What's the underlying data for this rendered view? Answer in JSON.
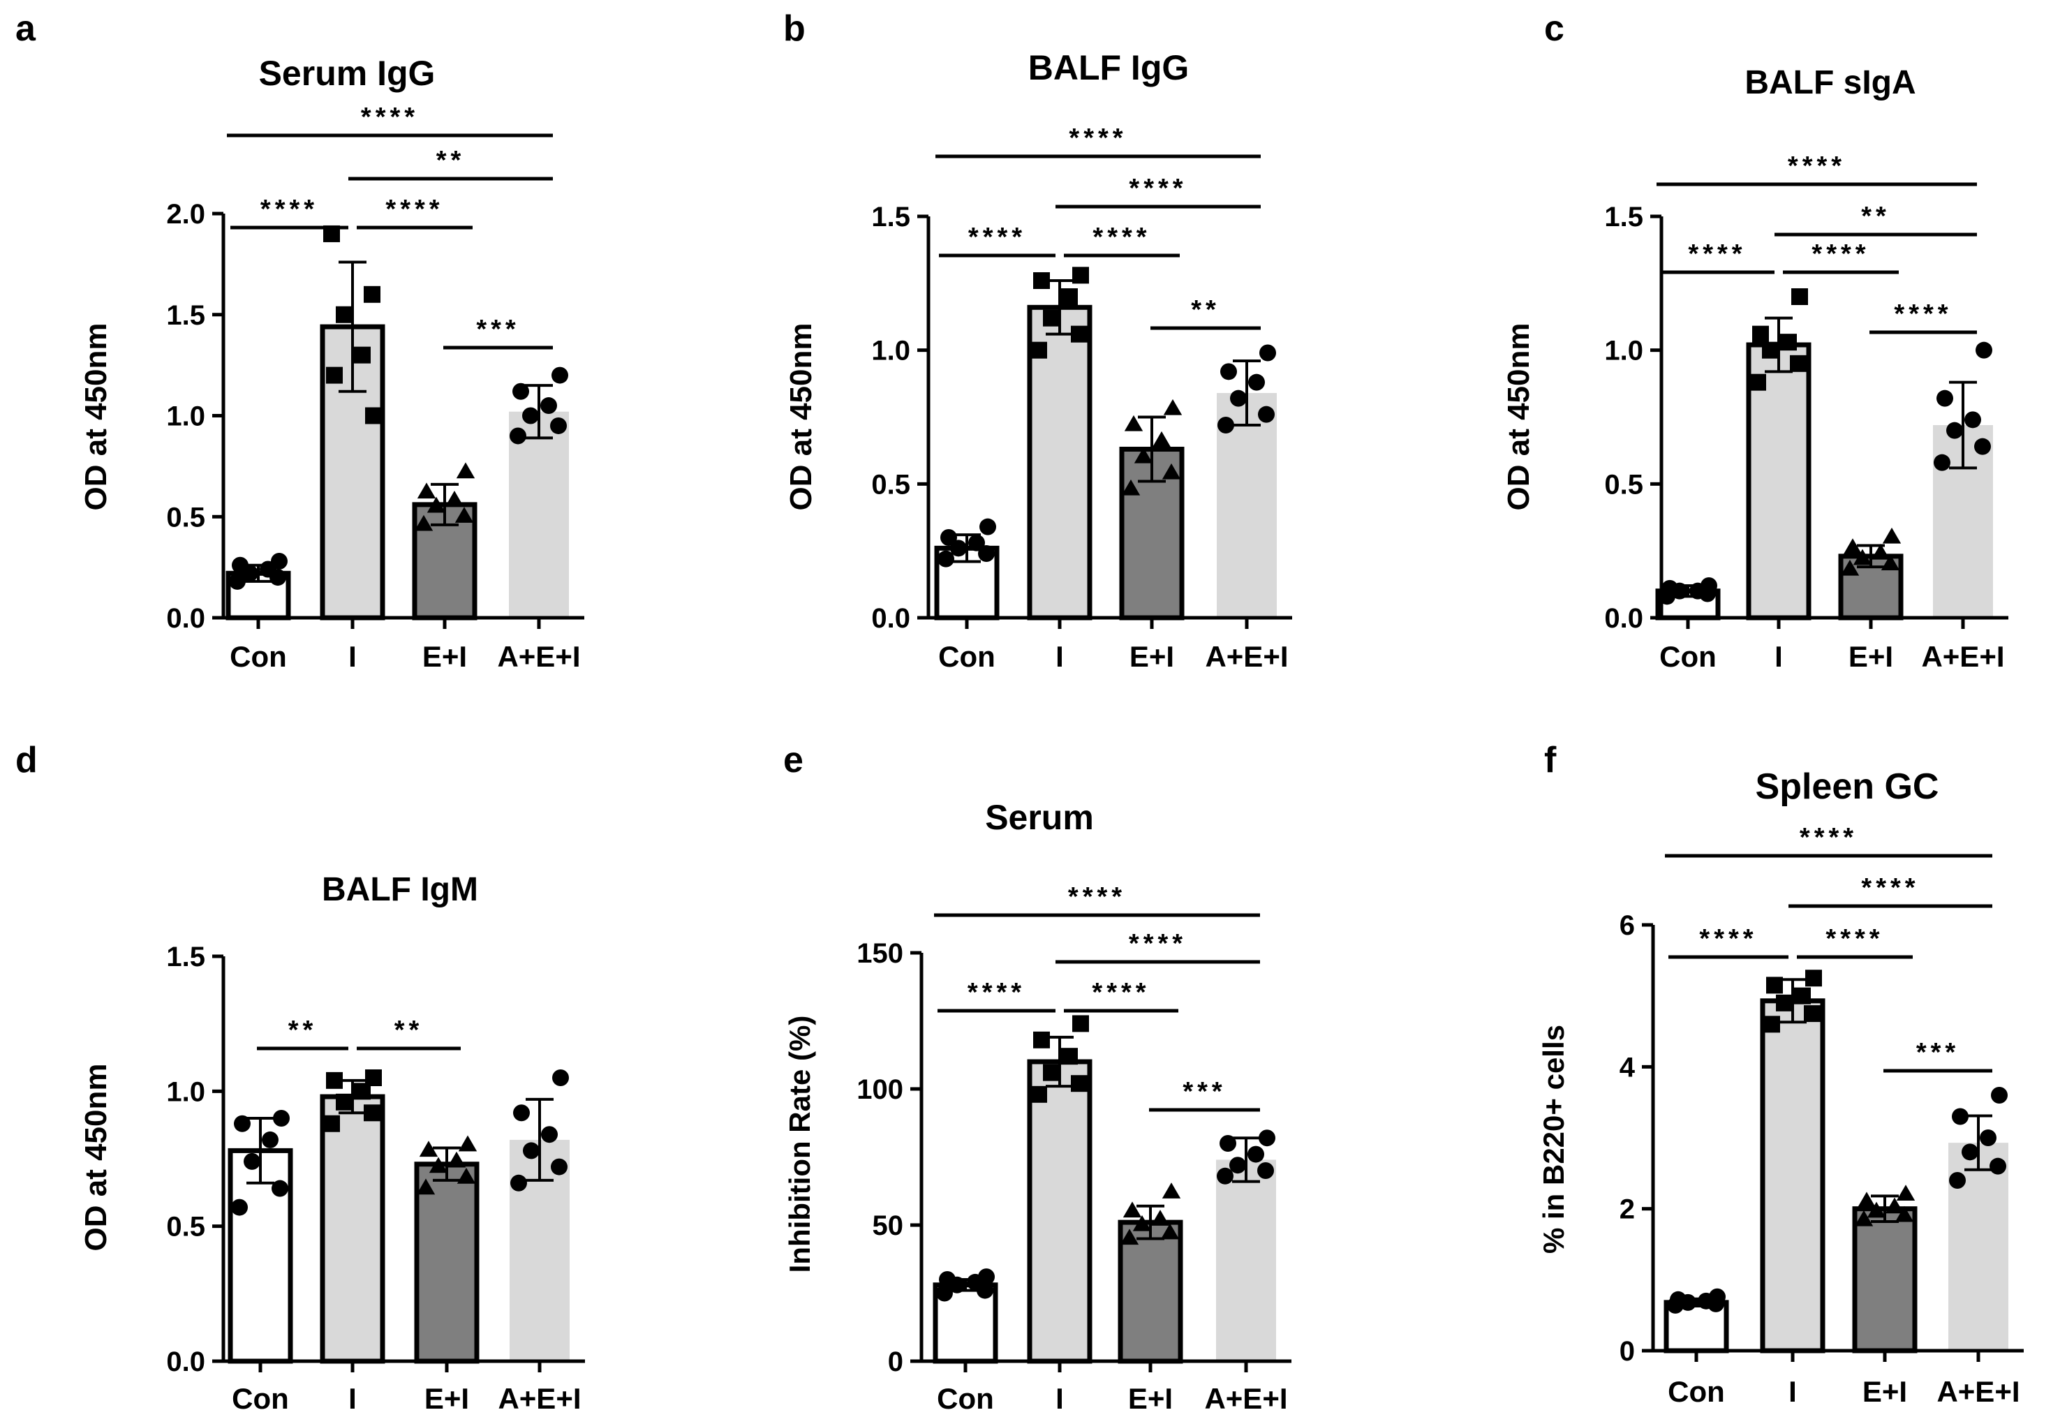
{
  "figure": {
    "categories": [
      "Con",
      "I",
      "E+I",
      "A+E+I"
    ],
    "colors": {
      "Con": "#ffffff",
      "I": "#d9d9d9",
      "E+I": "#7f7f7f",
      "A+E+I": "#d9d9d9"
    },
    "marker_shapes": [
      "circle",
      "square",
      "triangle",
      "circle"
    ]
  },
  "chart_data": [
    {
      "panel": "a",
      "type": "bar",
      "title": "Serum IgG",
      "ylabel": "OD at 450nm",
      "xlabel": "",
      "ylim": [
        0,
        2.0
      ],
      "yticks": [
        0.0,
        0.5,
        1.0,
        1.5,
        2.0
      ],
      "ytick_labels": [
        "0.0",
        "0.5",
        "1.0",
        "1.5",
        "2.0"
      ],
      "categories": [
        "Con",
        "I",
        "E+I",
        "A+E+I"
      ],
      "values": [
        0.22,
        1.44,
        0.56,
        1.02
      ],
      "errors": [
        0.04,
        0.32,
        0.1,
        0.13
      ],
      "points": [
        [
          0.18,
          0.2,
          0.22,
          0.24,
          0.26,
          0.28
        ],
        [
          1.9,
          1.6,
          1.5,
          1.3,
          1.2,
          1.0
        ],
        [
          0.46,
          0.5,
          0.55,
          0.58,
          0.62,
          0.72
        ],
        [
          0.9,
          0.95,
          1.0,
          1.05,
          1.12,
          1.2
        ]
      ],
      "significance": [
        {
          "from": 0,
          "to": 3,
          "label": "****"
        },
        {
          "from": 1,
          "to": 3,
          "label": "**"
        },
        {
          "from": 0,
          "to": 1,
          "label": "****"
        },
        {
          "from": 1,
          "to": 2,
          "label": "****"
        },
        {
          "from": 2,
          "to": 3,
          "label": "***"
        }
      ]
    },
    {
      "panel": "b",
      "type": "bar",
      "title": "BALF IgG",
      "ylabel": "OD at 450nm",
      "xlabel": "",
      "ylim": [
        0,
        1.5
      ],
      "yticks": [
        0.0,
        0.5,
        1.0,
        1.5
      ],
      "ytick_labels": [
        "0.0",
        "0.5",
        "1.0",
        "1.5"
      ],
      "categories": [
        "Con",
        "I",
        "E+I",
        "A+E+I"
      ],
      "values": [
        0.26,
        1.16,
        0.63,
        0.84
      ],
      "errors": [
        0.05,
        0.1,
        0.12,
        0.12
      ],
      "points": [
        [
          0.22,
          0.24,
          0.26,
          0.28,
          0.3,
          0.34
        ],
        [
          1.0,
          1.06,
          1.12,
          1.2,
          1.26,
          1.28
        ],
        [
          0.48,
          0.54,
          0.6,
          0.66,
          0.72,
          0.78
        ],
        [
          0.72,
          0.76,
          0.82,
          0.88,
          0.92,
          0.99
        ]
      ],
      "significance": [
        {
          "from": 0,
          "to": 3,
          "label": "****"
        },
        {
          "from": 1,
          "to": 3,
          "label": "****"
        },
        {
          "from": 0,
          "to": 1,
          "label": "****"
        },
        {
          "from": 1,
          "to": 2,
          "label": "****"
        },
        {
          "from": 2,
          "to": 3,
          "label": "**"
        }
      ]
    },
    {
      "panel": "c",
      "type": "bar",
      "title": "BALF sIgA",
      "ylabel": "OD at 450nm",
      "xlabel": "",
      "ylim": [
        0,
        1.5
      ],
      "yticks": [
        0.0,
        0.5,
        1.0,
        1.5
      ],
      "ytick_labels": [
        "0.0",
        "0.5",
        "1.0",
        "1.5"
      ],
      "categories": [
        "Con",
        "I",
        "E+I",
        "A+E+I"
      ],
      "values": [
        0.1,
        1.02,
        0.23,
        0.72
      ],
      "errors": [
        0.02,
        0.1,
        0.04,
        0.16
      ],
      "points": [
        [
          0.08,
          0.09,
          0.1,
          0.1,
          0.11,
          0.12
        ],
        [
          0.88,
          0.95,
          1.0,
          1.03,
          1.06,
          1.2
        ],
        [
          0.18,
          0.2,
          0.22,
          0.24,
          0.26,
          0.3
        ],
        [
          0.58,
          0.64,
          0.7,
          0.74,
          0.82,
          1.0
        ]
      ],
      "significance": [
        {
          "from": 0,
          "to": 3,
          "label": "****"
        },
        {
          "from": 1,
          "to": 3,
          "label": "**"
        },
        {
          "from": 0,
          "to": 1,
          "label": "****"
        },
        {
          "from": 1,
          "to": 2,
          "label": "****"
        },
        {
          "from": 2,
          "to": 3,
          "label": "****"
        }
      ]
    },
    {
      "panel": "d",
      "type": "bar",
      "title": "BALF IgM",
      "ylabel": "OD at 450nm",
      "xlabel": "",
      "ylim": [
        0,
        1.5
      ],
      "yticks": [
        0.0,
        0.5,
        1.0,
        1.5
      ],
      "ytick_labels": [
        "0.0",
        "0.5",
        "1.0",
        "1.5"
      ],
      "categories": [
        "Con",
        "I",
        "E+I",
        "A+E+I"
      ],
      "values": [
        0.78,
        0.98,
        0.73,
        0.82
      ],
      "errors": [
        0.12,
        0.06,
        0.06,
        0.15
      ],
      "points": [
        [
          0.57,
          0.64,
          0.74,
          0.82,
          0.88,
          0.9
        ],
        [
          0.88,
          0.92,
          0.96,
          1.0,
          1.04,
          1.05
        ],
        [
          0.64,
          0.68,
          0.72,
          0.74,
          0.78,
          0.8
        ],
        [
          0.66,
          0.72,
          0.78,
          0.84,
          0.92,
          1.05
        ]
      ],
      "significance": [
        {
          "from": 0,
          "to": 1,
          "label": "**"
        },
        {
          "from": 1,
          "to": 2,
          "label": "**"
        }
      ]
    },
    {
      "panel": "e",
      "type": "bar",
      "title": "Serum",
      "ylabel": "Inhibition Rate (%)",
      "xlabel": "",
      "ylim": [
        0,
        150
      ],
      "yticks": [
        0,
        50,
        100,
        150
      ],
      "ytick_labels": [
        "0",
        "50",
        "100",
        "150"
      ],
      "categories": [
        "Con",
        "I",
        "E+I",
        "A+E+I"
      ],
      "values": [
        28,
        110,
        51,
        74
      ],
      "errors": [
        2,
        9,
        6,
        8
      ],
      "points": [
        [
          25,
          26,
          28,
          29,
          30,
          31
        ],
        [
          98,
          102,
          106,
          112,
          118,
          124
        ],
        [
          45,
          47,
          50,
          52,
          55,
          62
        ],
        [
          68,
          70,
          72,
          76,
          80,
          82
        ]
      ],
      "significance": [
        {
          "from": 0,
          "to": 3,
          "label": "****"
        },
        {
          "from": 1,
          "to": 3,
          "label": "****"
        },
        {
          "from": 0,
          "to": 1,
          "label": "****"
        },
        {
          "from": 1,
          "to": 2,
          "label": "****"
        },
        {
          "from": 2,
          "to": 3,
          "label": "***"
        }
      ]
    },
    {
      "panel": "f",
      "type": "bar",
      "title": "Spleen GC",
      "ylabel": "% in B220+ cells",
      "xlabel": "",
      "ylim": [
        0,
        6
      ],
      "yticks": [
        0,
        2,
        4,
        6
      ],
      "ytick_labels": [
        "0",
        "2",
        "4",
        "6"
      ],
      "categories": [
        "Con",
        "I",
        "E+I",
        "A+E+I"
      ],
      "values": [
        0.68,
        4.93,
        2.0,
        2.93
      ],
      "errors": [
        0.05,
        0.3,
        0.18,
        0.38
      ],
      "points": [
        [
          0.64,
          0.66,
          0.68,
          0.7,
          0.72,
          0.76
        ],
        [
          4.6,
          4.75,
          4.9,
          5.0,
          5.15,
          5.25
        ],
        [
          1.84,
          1.9,
          1.96,
          2.02,
          2.1,
          2.2
        ],
        [
          2.4,
          2.6,
          2.8,
          3.0,
          3.3,
          3.6
        ]
      ],
      "significance": [
        {
          "from": 0,
          "to": 3,
          "label": "****"
        },
        {
          "from": 1,
          "to": 3,
          "label": "****"
        },
        {
          "from": 0,
          "to": 1,
          "label": "****"
        },
        {
          "from": 1,
          "to": 2,
          "label": "****"
        },
        {
          "from": 2,
          "to": 3,
          "label": "***"
        }
      ]
    }
  ]
}
